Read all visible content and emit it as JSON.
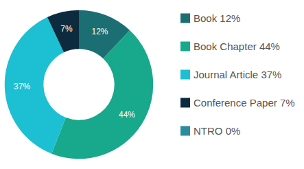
{
  "chart_data": {
    "type": "pie",
    "categories": [
      "Book 12%",
      "Book Chapter 44%",
      "Journal Article 37%",
      "Conference Paper 7%",
      "NTRO 0%"
    ],
    "values": [
      12,
      44,
      37,
      7,
      0
    ],
    "value_labels": [
      "12%",
      "44%",
      "37%",
      "7%",
      null
    ],
    "colors": [
      "#1b6f72",
      "#18a88b",
      "#1dbfd3",
      "#0c2b3e",
      "#2a8c9c"
    ],
    "data_labels": true,
    "legend": "right"
  }
}
